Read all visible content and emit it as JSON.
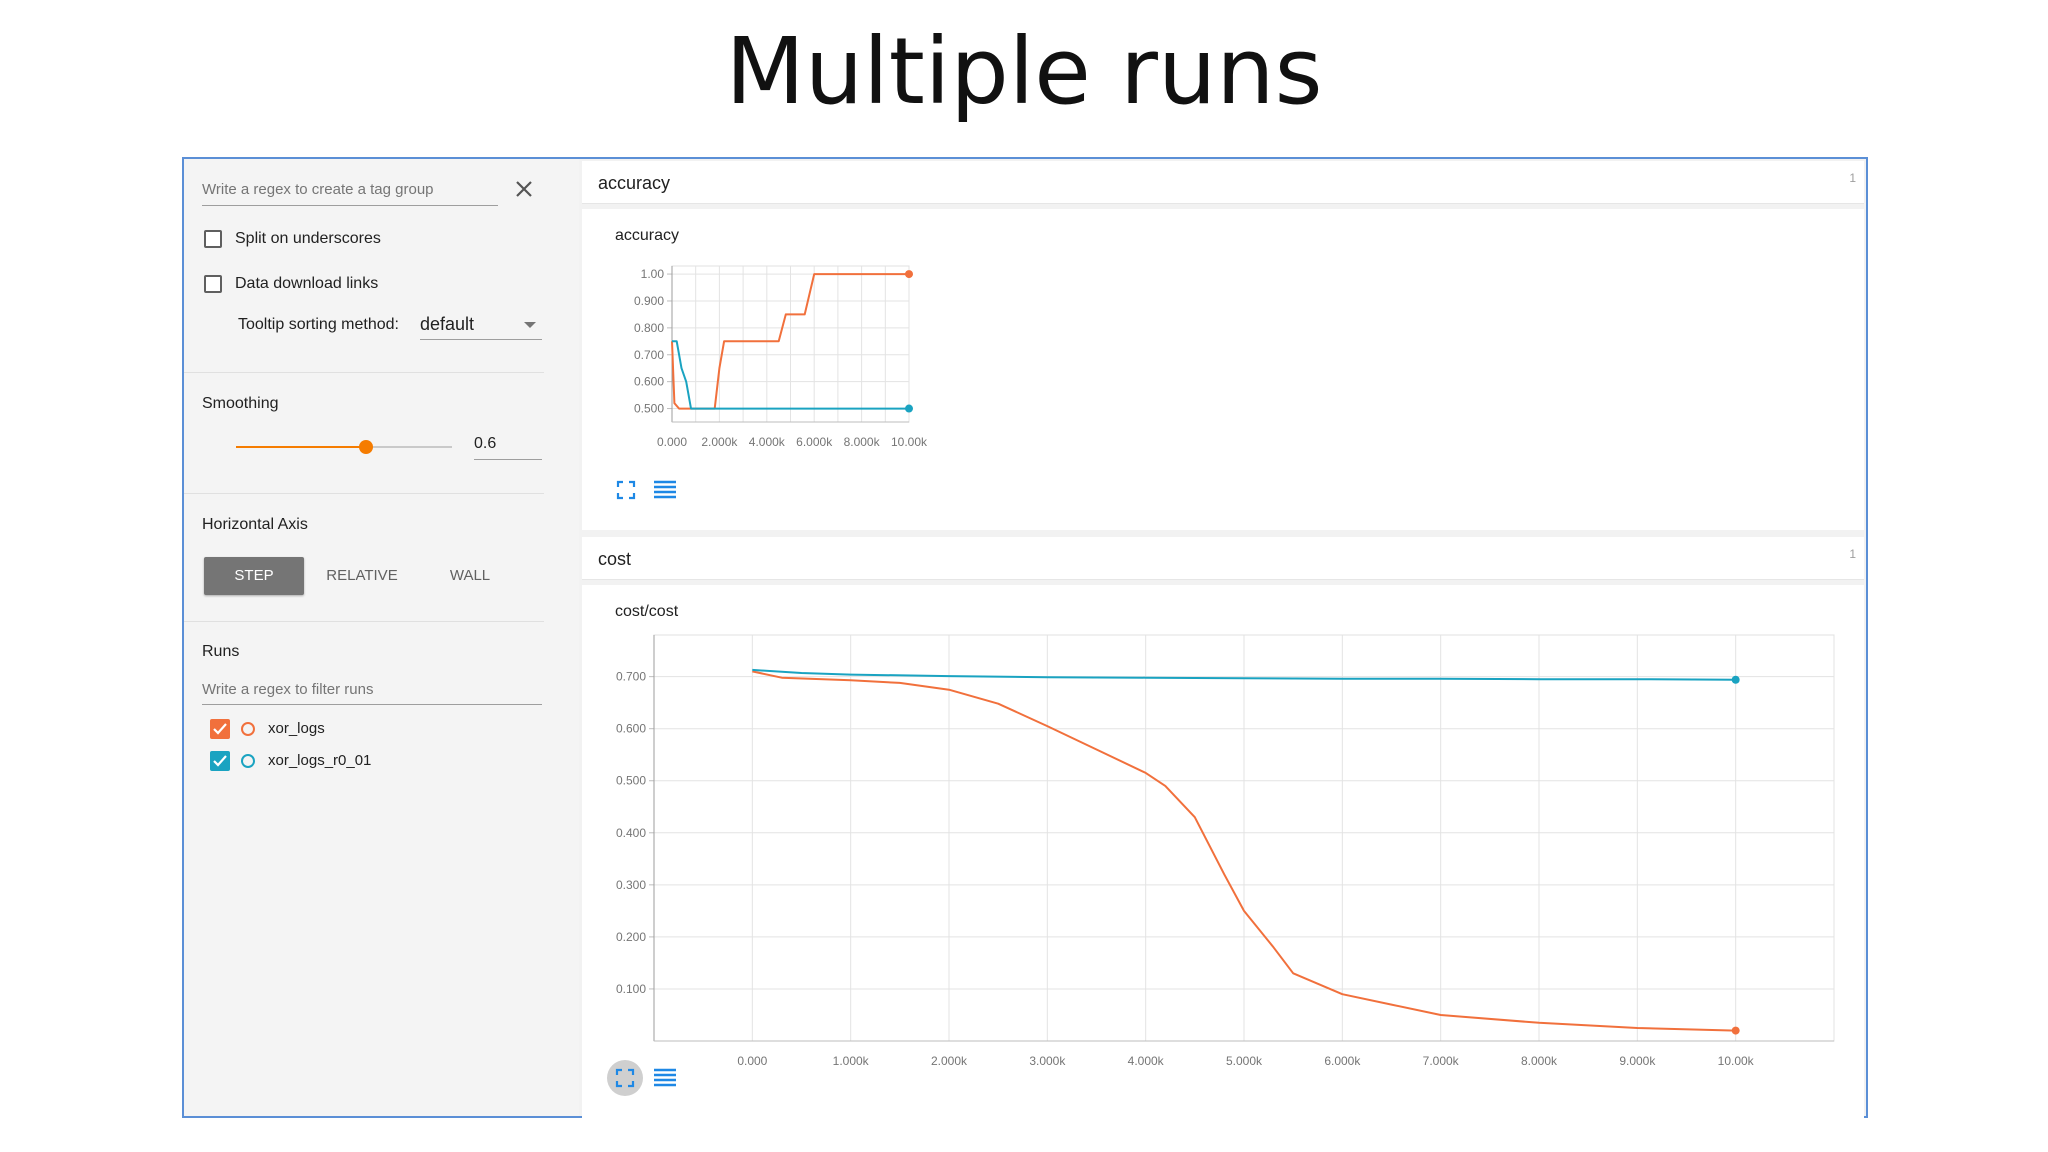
{
  "slide": {
    "title": "Multiple runs"
  },
  "sidebar": {
    "tag_regex": {
      "placeholder": "Write a regex to create a tag group",
      "value": ""
    },
    "options": [
      {
        "label": "Split on underscores",
        "checked": false
      },
      {
        "label": "Data download links",
        "checked": false
      }
    ],
    "tooltip_sorting": {
      "label": "Tooltip sorting method:",
      "value": "default"
    },
    "smoothing": {
      "label": "Smoothing",
      "value": "0.6",
      "fraction": 0.6
    },
    "horizontal_axis": {
      "label": "Horizontal Axis",
      "options": [
        "STEP",
        "RELATIVE",
        "WALL"
      ],
      "selected": "STEP"
    },
    "runs": {
      "label": "Runs",
      "filter_placeholder": "Write a regex to filter runs",
      "items": [
        {
          "name": "xor_logs",
          "color": "#f1703c",
          "checked": true
        },
        {
          "name": "xor_logs_r0_01",
          "color": "#1aa3c1",
          "checked": true
        }
      ]
    }
  },
  "sections": [
    {
      "name": "accuracy",
      "count": "1"
    },
    {
      "name": "cost",
      "count": "1"
    }
  ],
  "icons": {
    "expand": "fullscreen-icon",
    "data": "list-icon"
  },
  "chart_data": [
    {
      "type": "line",
      "title": "accuracy",
      "xlabel": "",
      "ylabel": "",
      "xlim": [
        0,
        10000
      ],
      "ylim": [
        0.45,
        1.03
      ],
      "x_ticks": [
        "0.000",
        "2.000k",
        "4.000k",
        "6.000k",
        "8.000k",
        "10.00k"
      ],
      "y_ticks": [
        "0.500",
        "0.600",
        "0.700",
        "0.800",
        "0.900",
        "1.00"
      ],
      "grid": true,
      "series": [
        {
          "name": "xor_logs",
          "color": "#f1703c",
          "x": [
            0,
            100,
            300,
            500,
            1000,
            1500,
            1800,
            2000,
            2200,
            2400,
            4500,
            4800,
            5600,
            6000,
            10000
          ],
          "y": [
            0.75,
            0.52,
            0.5,
            0.5,
            0.5,
            0.5,
            0.5,
            0.65,
            0.75,
            0.75,
            0.75,
            0.85,
            0.85,
            1.0,
            1.0
          ]
        },
        {
          "name": "xor_logs_r0_01",
          "color": "#1aa3c1",
          "x": [
            0,
            200,
            400,
            600,
            800,
            1000,
            10000
          ],
          "y": [
            0.75,
            0.75,
            0.65,
            0.6,
            0.5,
            0.5,
            0.5
          ]
        }
      ]
    },
    {
      "type": "line",
      "title": "cost/cost",
      "xlabel": "",
      "ylabel": "",
      "xlim": [
        -1000,
        11000
      ],
      "ylim": [
        0,
        0.78
      ],
      "x_ticks": [
        "0.000",
        "1.000k",
        "2.000k",
        "3.000k",
        "4.000k",
        "5.000k",
        "6.000k",
        "7.000k",
        "8.000k",
        "9.000k",
        "10.00k"
      ],
      "y_ticks": [
        "0.100",
        "0.200",
        "0.300",
        "0.400",
        "0.500",
        "0.600",
        "0.700"
      ],
      "grid": true,
      "series": [
        {
          "name": "xor_logs",
          "color": "#f1703c",
          "x": [
            0,
            300,
            1000,
            1500,
            2000,
            2500,
            3000,
            3500,
            4000,
            4200,
            4500,
            4800,
            5000,
            5300,
            5500,
            6000,
            6500,
            7000,
            8000,
            9000,
            10000
          ],
          "y": [
            0.71,
            0.698,
            0.693,
            0.688,
            0.675,
            0.648,
            0.605,
            0.56,
            0.515,
            0.49,
            0.43,
            0.32,
            0.25,
            0.18,
            0.13,
            0.09,
            0.07,
            0.05,
            0.035,
            0.025,
            0.02
          ]
        },
        {
          "name": "xor_logs_r0_01",
          "color": "#1aa3c1",
          "x": [
            0,
            500,
            1000,
            2000,
            3000,
            4000,
            5000,
            6000,
            7000,
            8000,
            9000,
            10000
          ],
          "y": [
            0.713,
            0.707,
            0.704,
            0.701,
            0.699,
            0.698,
            0.697,
            0.696,
            0.696,
            0.695,
            0.695,
            0.694
          ]
        }
      ]
    }
  ]
}
